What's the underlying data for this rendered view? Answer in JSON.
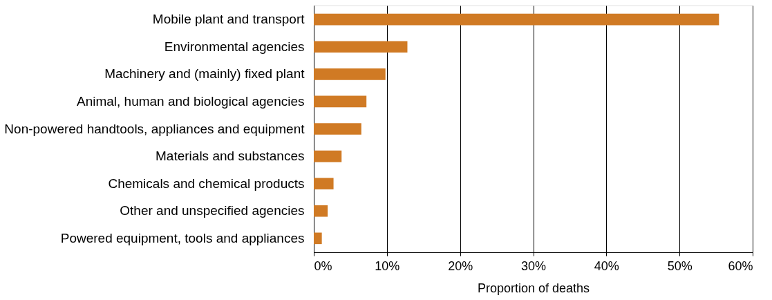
{
  "chart_data": {
    "type": "bar",
    "orientation": "horizontal",
    "categories": [
      "Mobile plant and transport",
      "Environmental agencies",
      "Machinery and (mainly) fixed plant",
      "Animal, human and biological agencies",
      "Non-powered handtools, appliances and equipment",
      "Materials and substances",
      "Chemicals and chemical products",
      "Other and unspecified agencies",
      "Powered equipment, tools and appliances"
    ],
    "values": [
      55.4,
      12.8,
      9.8,
      7.2,
      6.5,
      3.8,
      2.7,
      1.9,
      1.1
    ],
    "color": "#d07a24",
    "xlabel": "Proportion of deaths",
    "xlim": [
      0,
      60
    ],
    "xticks": [
      {
        "value": 0,
        "label": "0%"
      },
      {
        "value": 10,
        "label": "10%"
      },
      {
        "value": 20,
        "label": "20%"
      },
      {
        "value": 30,
        "label": "30%"
      },
      {
        "value": 40,
        "label": "40%"
      },
      {
        "value": 50,
        "label": "50%"
      },
      {
        "value": 60,
        "label": "60%"
      }
    ],
    "grid": "x"
  }
}
